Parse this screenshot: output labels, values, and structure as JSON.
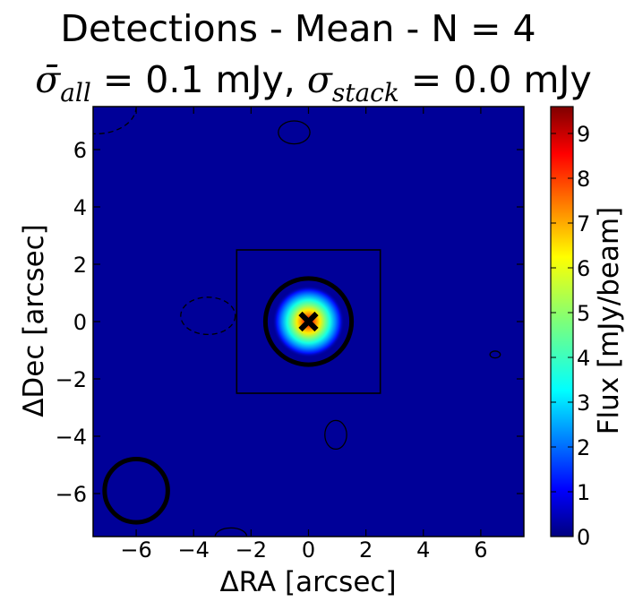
{
  "title_line1": "Detections - Mean - N = 4",
  "title_line2": {
    "sigma_all_symbol": "σ̄",
    "sigma_all_sub": "all",
    "sigma_all_value": " = 0.1 mJy, ",
    "sigma_stack_symbol": "σ",
    "sigma_stack_sub": "stack",
    "sigma_stack_value": " = 0.0 mJy"
  },
  "chart_data": {
    "type": "heatmap",
    "title": "Detections - Mean - N = 4",
    "xlabel": "ΔRA [arcsec]",
    "ylabel": "ΔDec [arcsec]",
    "colorbar_label": "Flux [mJy/beam]",
    "xlim": [
      -7.5,
      7.5
    ],
    "ylim": [
      -7.5,
      7.5
    ],
    "xticks": [
      -6,
      -4,
      -2,
      0,
      2,
      4,
      6
    ],
    "xtick_labels": [
      "−6",
      "−4",
      "−2",
      "0",
      "2",
      "4",
      "6"
    ],
    "yticks": [
      -6,
      -4,
      -2,
      0,
      2,
      4,
      6
    ],
    "ytick_labels": [
      "−6",
      "−4",
      "−2",
      "0",
      "2",
      "4",
      "6"
    ],
    "colorbar_range": [
      0,
      9.6
    ],
    "colorbar_ticks": [
      0,
      1,
      2,
      3,
      4,
      5,
      6,
      7,
      8,
      9
    ],
    "colorbar_tick_labels": [
      "0",
      "1",
      "2",
      "3",
      "4",
      "5",
      "6",
      "7",
      "8",
      "9"
    ],
    "colormap": "jet",
    "background_value": 0.2,
    "source": {
      "x": 0.0,
      "y": 0.0,
      "peak": 9.6
    },
    "marker": {
      "x": 0.0,
      "y": 0.0,
      "shape": "x"
    },
    "center_circle": {
      "x": 0.0,
      "y": 0.0,
      "radius": 1.5
    },
    "beam_circle": {
      "x": -6.0,
      "y": -5.9,
      "radius": 1.1
    },
    "box": {
      "x0": -2.5,
      "x1": 2.5,
      "y0": -2.5,
      "y1": 2.5
    },
    "contours": [
      {
        "x": -0.5,
        "y": 6.6,
        "rx": 0.55,
        "ry": 0.4,
        "dashed": false
      },
      {
        "x": -3.5,
        "y": 0.2,
        "rx": 0.95,
        "ry": 0.65,
        "dashed": true
      },
      {
        "x": 0.95,
        "y": -3.95,
        "rx": 0.38,
        "ry": 0.5,
        "dashed": false
      },
      {
        "x": 6.5,
        "y": -1.15,
        "rx": 0.18,
        "ry": 0.12,
        "dashed": false
      },
      {
        "x": -7.4,
        "y": 7.5,
        "rx": 1.4,
        "ry": 0.95,
        "dashed": true
      },
      {
        "x": -2.7,
        "y": -7.5,
        "rx": 0.55,
        "ry": 0.3,
        "dashed": false
      }
    ]
  }
}
